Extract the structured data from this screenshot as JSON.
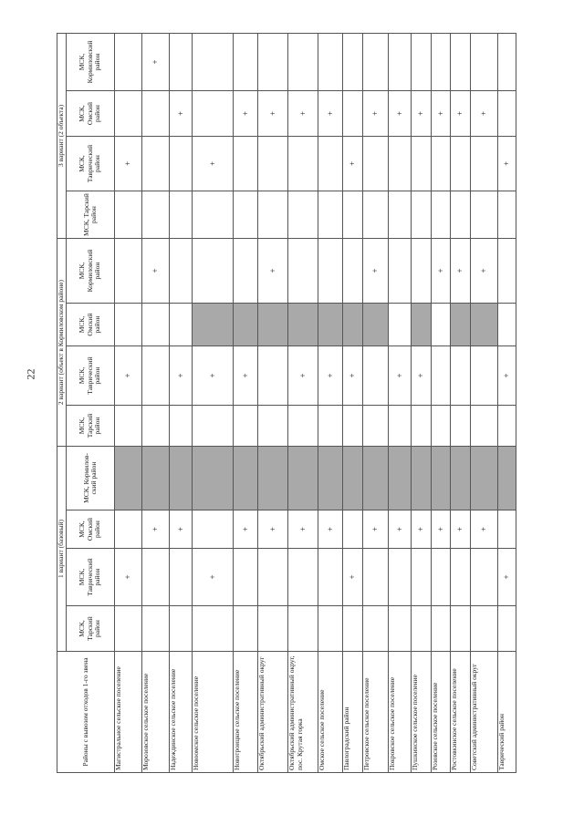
{
  "page_number": "22",
  "table": {
    "corner": "Районы с вывозом отходов 1-го звена",
    "groups": [
      {
        "title": "1 вариант (базовый)",
        "columns": [
          "МСК, Тарский район",
          "МСК, Таврический район",
          "МСК, Омский район",
          "МСК, Кормилов-ский район"
        ]
      },
      {
        "title": "2 вариант (объект в Кормиловском районе)",
        "columns": [
          "МСК, Тарский район",
          "МСК, Таврический район",
          "МСК, Омский район",
          "МСК, Кормиловский район"
        ]
      },
      {
        "title": "3 вариант (2 объекта)",
        "columns": [
          "МСК, Тарский район",
          "МСК, Таврический район",
          "МСК, Омский район",
          "МСК, Кормиловский район"
        ]
      }
    ],
    "rows": [
      [
        "Магистральное сельское поселение",
        null,
        "+",
        null,
        null,
        null,
        "+",
        null,
        null,
        null,
        "+",
        null,
        null
      ],
      [
        "Морозовское сельское поселение",
        null,
        null,
        "+",
        null,
        null,
        null,
        null,
        "+",
        null,
        null,
        null,
        "+"
      ],
      [
        "Надеждинское сельское поселение",
        null,
        null,
        "+",
        null,
        null,
        "+",
        null,
        null,
        null,
        null,
        "+",
        null
      ],
      [
        "Новоомское сельское поселение",
        null,
        "+",
        null,
        null,
        null,
        "+",
        null,
        null,
        null,
        "+",
        null,
        null
      ],
      [
        "Новотроицкое сельское поселение",
        null,
        null,
        "+",
        null,
        null,
        "+",
        null,
        null,
        null,
        null,
        "+",
        null
      ],
      [
        "Октябрьский административный округ",
        null,
        null,
        "+",
        null,
        null,
        null,
        null,
        "+",
        null,
        null,
        "+",
        null
      ],
      [
        "Октябрьский административный округ, пос. Крутая горка",
        null,
        null,
        "+",
        null,
        null,
        "+",
        null,
        null,
        null,
        null,
        "+",
        null
      ],
      [
        "Омское сельское поселение",
        null,
        null,
        "+",
        null,
        null,
        "+",
        null,
        null,
        null,
        null,
        "+",
        null
      ],
      [
        "Павлоградский район",
        null,
        "+",
        null,
        null,
        null,
        "+",
        null,
        null,
        null,
        "+",
        null,
        null
      ],
      [
        "Петровское сельское поселение",
        null,
        null,
        "+",
        null,
        null,
        null,
        null,
        "+",
        null,
        null,
        "+",
        null
      ],
      [
        "Покровское сельское поселение",
        null,
        null,
        "+",
        null,
        null,
        "+",
        null,
        null,
        null,
        null,
        "+",
        null
      ],
      [
        "Пушкинское сельское поселение",
        null,
        null,
        "+",
        null,
        null,
        "+",
        null,
        null,
        null,
        null,
        "+",
        null
      ],
      [
        "Розовское сельское поселение",
        null,
        null,
        "+",
        null,
        null,
        null,
        null,
        "+",
        null,
        null,
        "+",
        null
      ],
      [
        "Ростовкинское сельское поселение",
        null,
        null,
        "+",
        null,
        null,
        null,
        null,
        "+",
        null,
        null,
        "+",
        null
      ],
      [
        "Советский административный округ",
        null,
        null,
        "+",
        null,
        null,
        null,
        null,
        "+",
        null,
        null,
        "+",
        null
      ],
      [
        "Таврический район",
        null,
        "+",
        null,
        null,
        null,
        "+",
        null,
        null,
        null,
        "+",
        null,
        null
      ]
    ]
  }
}
